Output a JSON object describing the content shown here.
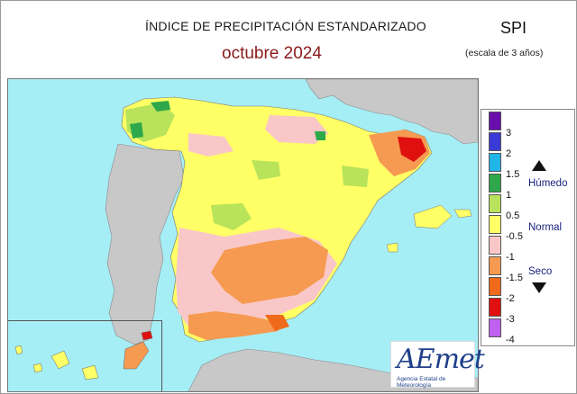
{
  "header": {
    "title": "ÍNDICE DE PRECIPITACIÓN ESTANDARIZADO",
    "subtitle": "octubre  2024",
    "index_name": "SPI",
    "scale_note": "(escala de 3 años)"
  },
  "legend": {
    "ticks": [
      "3",
      "2",
      "1.5",
      "1",
      "0.5",
      "-0.5",
      "-1",
      "-1.5",
      "-2",
      "-3",
      "-4"
    ],
    "colors": [
      "#6a0dad",
      "#3a3ad6",
      "#1fb5e6",
      "#2ea84a",
      "#b8e35a",
      "#ffff66",
      "#f9c7c7",
      "#f59a50",
      "#ef6a1a",
      "#e01010",
      "#c060f0"
    ],
    "categories": {
      "wet": "Húmedo",
      "normal": "Normal",
      "dry": "Seco"
    }
  },
  "logo": {
    "text": "AEmet",
    "caption": "Agencia Estatal de Meteorología"
  }
}
